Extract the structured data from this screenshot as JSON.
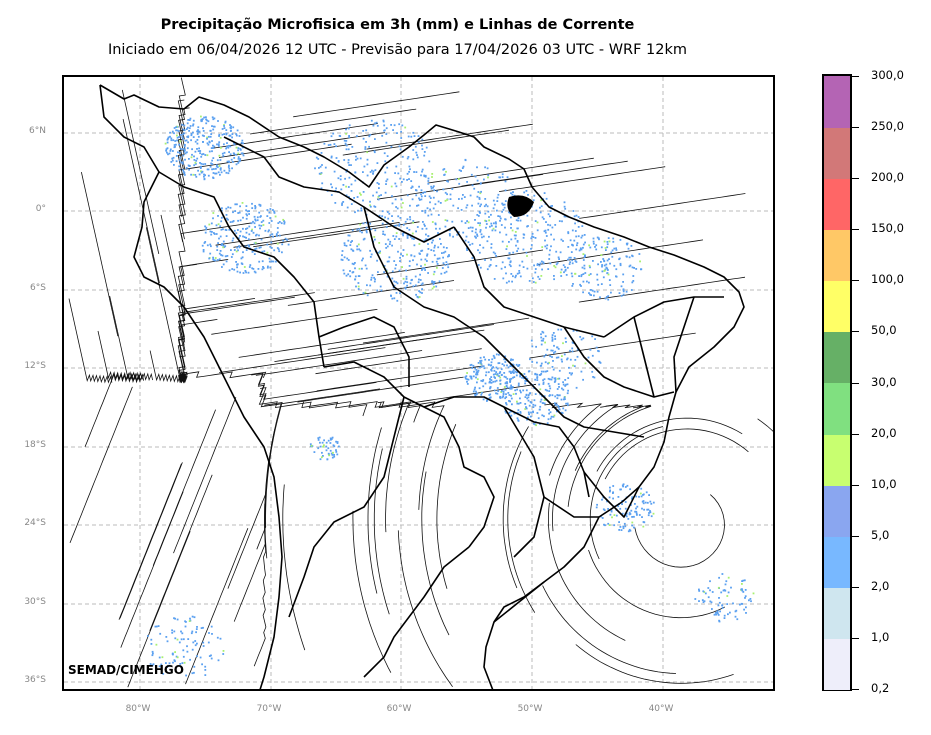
{
  "title": "Precipitação Microfisica em 3h (mm) e Linhas de Corrente",
  "subtitle": "Iniciado em 06/04/2026 12 UTC - Previsão para 17/04/2026 03 UTC - WRF 12km",
  "credit": "SEMAD/CIMEHGO",
  "latitude_labels": [
    "6°N",
    "0°",
    "6°S",
    "12°S",
    "18°S",
    "24°S",
    "30°S",
    "36°S"
  ],
  "longitude_labels": [
    "80°W",
    "70°W",
    "60°W",
    "50°W",
    "40°W"
  ],
  "colorbar": {
    "labels": [
      "0,2",
      "1,0",
      "2,0",
      "5,0",
      "10,0",
      "20,0",
      "30,0",
      "50,0",
      "100,0",
      "150,0",
      "200,0",
      "250,0",
      "300,0"
    ],
    "colors": [
      "#eeeefa",
      "#cfe6ef",
      "#78b8ff",
      "#8aa6f0",
      "#c8ff70",
      "#80e080",
      "#66b066",
      "#ffff66",
      "#ffc866",
      "#ff6666",
      "#d27878",
      "#b464b4"
    ]
  },
  "colors": {
    "rain_light": "#5aa0f0",
    "rain_moderate": "#a8f070",
    "rain_heavy": "#5fb84f",
    "grid": "#bbbbbb",
    "borders": "#000000"
  }
}
